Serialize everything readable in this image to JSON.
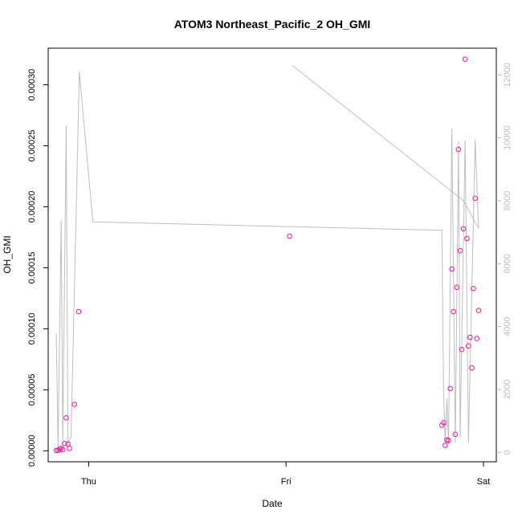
{
  "chart_data": {
    "type": "scatter",
    "title": "ATOM3 Northeast_Pacific_2 OH_GMI",
    "xlabel": "Date",
    "ylabel": "OH_GMI",
    "xlim": [
      -0.205,
      2.065
    ],
    "ylim": [
      -9e-06,
      0.00033
    ],
    "y2lim": [
      -300,
      12850
    ],
    "x_ticks": [
      {
        "label": "Thu",
        "value": 0
      },
      {
        "label": "Fri",
        "value": 1
      },
      {
        "label": "Sat",
        "value": 2
      }
    ],
    "y_ticks": [
      {
        "label": "0.00000",
        "value": 0
      },
      {
        "label": "0.00005",
        "value": 5e-05
      },
      {
        "label": "0.00010",
        "value": 0.0001
      },
      {
        "label": "0.00015",
        "value": 0.00015
      },
      {
        "label": "0.00020",
        "value": 0.0002
      },
      {
        "label": "0.00025",
        "value": 0.00025
      },
      {
        "label": "0.00030",
        "value": 0.0003
      }
    ],
    "y2_ticks": [
      {
        "label": "0",
        "value": 0
      },
      {
        "label": "2000",
        "value": 2000
      },
      {
        "label": "4000",
        "value": 4000
      },
      {
        "label": "6000",
        "value": 6000
      },
      {
        "label": "8000",
        "value": 8000
      },
      {
        "label": "10000",
        "value": 10000
      },
      {
        "label": "12000",
        "value": 12000
      }
    ],
    "colors": {
      "points": "#ff1493",
      "altitude_line": "#bebebe",
      "axis": "#000000",
      "right_axis": "#bdbdbd"
    },
    "series": [
      {
        "points": [
          {
            "x": -0.164,
            "y": 2e-07
          },
          {
            "x": -0.155,
            "y": 5e-07
          },
          {
            "x": -0.147,
            "y": 1.2e-06
          },
          {
            "x": -0.139,
            "y": 2e-06
          },
          {
            "x": -0.131,
            "y": 8e-07
          },
          {
            "x": -0.122,
            "y": 6e-06
          },
          {
            "x": -0.114,
            "y": 2.7e-05
          },
          {
            "x": -0.105,
            "y": 5.5e-06
          },
          {
            "x": -0.097,
            "y": 2e-06
          },
          {
            "x": -0.072,
            "y": 3.8e-05
          },
          {
            "x": -0.051,
            "y": 0.000114
          },
          {
            "x": 1.018,
            "y": 0.000176
          },
          {
            "x": 1.789,
            "y": 2.1e-05
          },
          {
            "x": 1.798,
            "y": 2.3e-05
          },
          {
            "x": 1.806,
            "y": 4.5e-06
          },
          {
            "x": 1.815,
            "y": 9e-06
          },
          {
            "x": 1.823,
            "y": 8.5e-06
          },
          {
            "x": 1.832,
            "y": 5.1e-05
          },
          {
            "x": 1.84,
            "y": 0.000149
          },
          {
            "x": 1.848,
            "y": 0.000114
          },
          {
            "x": 1.857,
            "y": 1.35e-05
          },
          {
            "x": 1.865,
            "y": 0.000134
          },
          {
            "x": 1.873,
            "y": 0.000247
          },
          {
            "x": 1.882,
            "y": 0.000164
          },
          {
            "x": 1.89,
            "y": 8.3e-05
          },
          {
            "x": 1.899,
            "y": 0.000182
          },
          {
            "x": 1.907,
            "y": 0.000321
          },
          {
            "x": 1.916,
            "y": 0.000174
          },
          {
            "x": 1.924,
            "y": 8.6e-05
          },
          {
            "x": 1.932,
            "y": 9.3e-05
          },
          {
            "x": 1.941,
            "y": 6.8e-05
          },
          {
            "x": 1.949,
            "y": 0.000133
          },
          {
            "x": 1.958,
            "y": 0.000207
          },
          {
            "x": 1.966,
            "y": 9.2e-05
          },
          {
            "x": 1.975,
            "y": 0.000115
          }
        ]
      },
      {
        "axis": "right",
        "points": [
          {
            "x": -0.164,
            "y": 3780
          },
          {
            "x": -0.155,
            "y": 150
          },
          {
            "x": -0.139,
            "y": 7380
          },
          {
            "x": -0.131,
            "y": 200
          },
          {
            "x": -0.114,
            "y": 10400
          },
          {
            "x": -0.105,
            "y": 300
          },
          {
            "x": -0.089,
            "y": 500
          },
          {
            "x": -0.047,
            "y": 12100
          },
          {
            "x": 0.021,
            "y": 7330
          },
          {
            "x": 1.789,
            "y": 7060
          },
          {
            "x": 1.798,
            "y": 1850
          },
          {
            "x": 1.806,
            "y": 300
          },
          {
            "x": 1.815,
            "y": 1700
          },
          {
            "x": 1.823,
            "y": 250
          },
          {
            "x": 1.84,
            "y": 10300
          },
          {
            "x": 1.857,
            "y": 300
          },
          {
            "x": 1.874,
            "y": 9900
          },
          {
            "x": 1.882,
            "y": 450
          },
          {
            "x": 1.907,
            "y": 9920
          },
          {
            "x": 1.924,
            "y": 300
          },
          {
            "x": 1.958,
            "y": 9950
          },
          {
            "x": 1.975,
            "y": 7120
          },
          {
            "x": 1.899,
            "y": 8000
          },
          {
            "x": 1.032,
            "y": 12300
          }
        ]
      }
    ]
  }
}
